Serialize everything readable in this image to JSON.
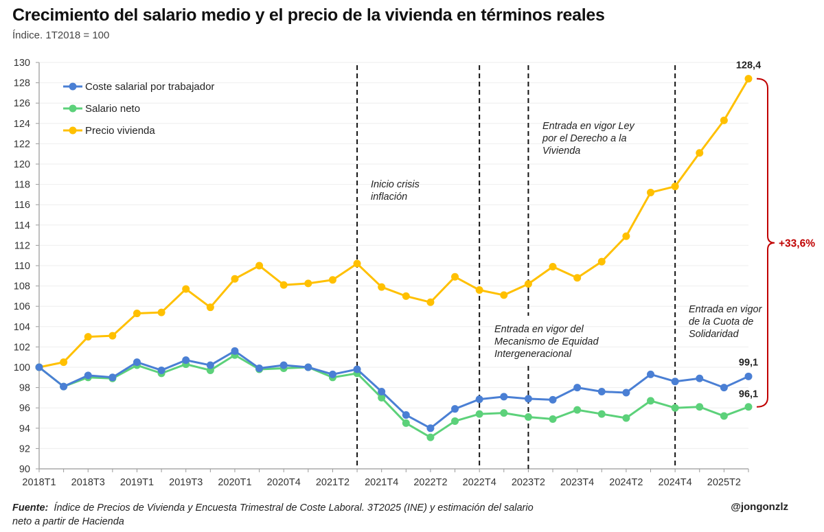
{
  "title": "Crecimiento del salario medio y el precio de la vivienda en términos reales",
  "subtitle": "Índice. 1T2018 = 100",
  "footer": {
    "source_label": "Fuente:",
    "source_text": "Índice de Precios de Vivienda y Encuesta Trimestral de Coste Laboral. 3T2025 (INE) y estimación del salario neto a partir de Hacienda",
    "handle": "@jongonzlz"
  },
  "chart_data": {
    "type": "line",
    "title": "Crecimiento del salario medio y el precio de la vivienda en términos reales",
    "subtitle": "Índice. 1T2018 = 100",
    "categories": [
      "2018T1",
      "2018T2",
      "2018T3",
      "2018T4",
      "2019T1",
      "2019T2",
      "2019T3",
      "2019T4",
      "2020T1",
      "2020T3",
      "2020T4",
      "2021T1",
      "2021T2",
      "2021T3",
      "2021T4",
      "2022T1",
      "2022T2",
      "2022T3",
      "2022T4",
      "2023T1",
      "2023T2",
      "2023T3",
      "2023T4",
      "2024T1",
      "2024T2",
      "2024T3",
      "2024T4",
      "2025T1",
      "2025T2",
      "2025T3"
    ],
    "tick_labels": [
      "2018T1",
      "2018T3",
      "2019T1",
      "2019T3",
      "2020T1",
      "2020T4",
      "2021T2",
      "2021T4",
      "2022T2",
      "2022T4",
      "2023T2",
      "2023T4",
      "2024T2",
      "2024T4",
      "2025T2"
    ],
    "ylim": [
      90,
      130
    ],
    "yticks": [
      90,
      92,
      94,
      96,
      98,
      100,
      102,
      104,
      106,
      108,
      110,
      112,
      114,
      116,
      118,
      120,
      122,
      124,
      126,
      128,
      130
    ],
    "grid": true,
    "legend_position": "top-left",
    "series": [
      {
        "name": "Coste salarial por trabajador",
        "color": "#4a7fd4",
        "values": [
          100,
          98.1,
          99.2,
          99.0,
          100.5,
          99.7,
          100.7,
          100.2,
          101.6,
          99.9,
          100.2,
          100.0,
          99.3,
          99.8,
          97.6,
          95.3,
          94.0,
          95.9,
          96.85,
          97.1,
          96.9,
          96.8,
          98.0,
          97.6,
          97.5,
          99.3,
          98.6,
          98.9,
          98.0,
          99.1
        ]
      },
      {
        "name": "Salario neto",
        "color": "#5cd17a",
        "values": [
          100,
          98.1,
          99.0,
          98.9,
          100.2,
          99.4,
          100.3,
          99.7,
          101.2,
          99.8,
          99.9,
          100.0,
          99.0,
          99.4,
          97.0,
          94.5,
          93.1,
          94.7,
          95.4,
          95.5,
          95.1,
          94.9,
          95.8,
          95.4,
          95.0,
          96.7,
          96.0,
          96.1,
          95.2,
          96.1
        ]
      },
      {
        "name": "Precio vivienda",
        "color": "#ffc000",
        "values": [
          100,
          100.5,
          103.0,
          103.1,
          105.3,
          105.4,
          107.7,
          105.9,
          108.7,
          110.0,
          108.1,
          108.25,
          108.6,
          110.2,
          107.9,
          107.0,
          106.4,
          108.9,
          107.6,
          107.1,
          108.2,
          109.9,
          108.8,
          110.4,
          112.9,
          117.2,
          117.8,
          121.1,
          124.3,
          128.4
        ]
      }
    ],
    "data_labels": [
      {
        "series": "Precio vivienda",
        "category": "2025T3",
        "text": "128,4"
      },
      {
        "series": "Coste salarial por trabajador",
        "category": "2025T3",
        "text": "99,1"
      },
      {
        "series": "Salario neto",
        "category": "2025T3",
        "text": "96,1"
      }
    ],
    "vertical_markers": [
      {
        "category": "2021T3",
        "text": [
          "Inicio crisis",
          "inflación"
        ]
      },
      {
        "category": "2022T4",
        "text": [
          "Entrada en vigor del",
          "Mecanismo de Equidad",
          "Intergeneracional"
        ]
      },
      {
        "category": "2023T2",
        "text": [
          "Entrada en vigor Ley",
          "por el Derecho a la",
          "Vivienda"
        ]
      },
      {
        "category": "2024T4",
        "text": [
          "Entrada en vigor",
          "de la Cuota de",
          "Solidaridad"
        ]
      }
    ],
    "brace_annotation": {
      "text": "+33,6%",
      "color": "#c00000",
      "from_value": 128.4,
      "to_value": 96.1
    }
  }
}
